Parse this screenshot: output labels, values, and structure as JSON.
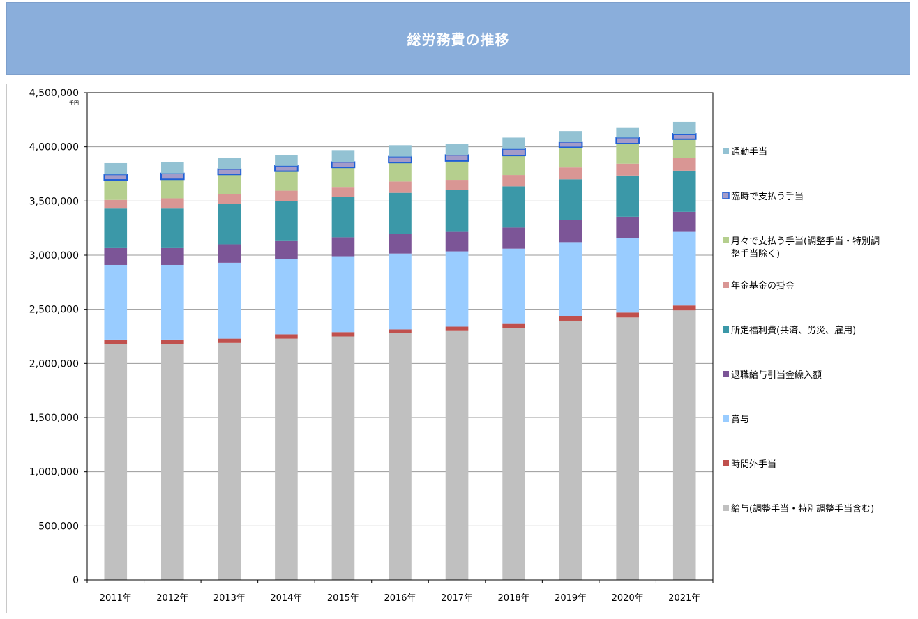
{
  "header": {
    "title": "総労務費の推移"
  },
  "chart_data": {
    "type": "bar",
    "stacked": true,
    "title": "総労務費の推移",
    "unit_label": "千円",
    "categories": [
      "2011年",
      "2012年",
      "2013年",
      "2014年",
      "2015年",
      "2016年",
      "2017年",
      "2018年",
      "2019年",
      "2020年",
      "2021年"
    ],
    "ylim": [
      0,
      4500000
    ],
    "yticks": [
      {
        "value": 0,
        "label": "0"
      },
      {
        "value": 500000,
        "label": "500,000"
      },
      {
        "value": 1000000,
        "label": "1,000,000"
      },
      {
        "value": 1500000,
        "label": "1,500,000"
      },
      {
        "value": 2000000,
        "label": "2,000,000"
      },
      {
        "value": 2500000,
        "label": "2,500,000"
      },
      {
        "value": 3000000,
        "label": "3,000,000"
      },
      {
        "value": 3500000,
        "label": "3,500,000"
      },
      {
        "value": 4000000,
        "label": "4,000,000"
      },
      {
        "value": 4500000,
        "label": "4,500,000"
      }
    ],
    "grid": true,
    "legend_position": "right",
    "series": [
      {
        "name": "給与(調整手当・特別調整手当含む)",
        "color": "#c0c0c0",
        "values": [
          2180000,
          2180000,
          2190000,
          2230000,
          2250000,
          2280000,
          2300000,
          2325000,
          2395000,
          2425000,
          2490000
        ]
      },
      {
        "name": "時間外手当",
        "color": "#c0504d",
        "values": [
          35000,
          35000,
          40000,
          40000,
          40000,
          35000,
          40000,
          40000,
          40000,
          45000,
          45000
        ]
      },
      {
        "name": "賞与",
        "color": "#99ccff",
        "values": [
          695000,
          695000,
          700000,
          695000,
          700000,
          700000,
          695000,
          695000,
          685000,
          685000,
          680000
        ]
      },
      {
        "name": "退職給与引当金繰入額",
        "color": "#7c5597",
        "values": [
          155000,
          155000,
          170000,
          165000,
          175000,
          180000,
          180000,
          195000,
          205000,
          200000,
          185000
        ]
      },
      {
        "name": "所定福利費(共済、労災、雇用)",
        "color": "#3b98a8",
        "values": [
          365000,
          365000,
          370000,
          370000,
          370000,
          380000,
          385000,
          380000,
          375000,
          380000,
          380000
        ]
      },
      {
        "name": "年金基金の掛金",
        "color": "#d99694",
        "values": [
          80000,
          95000,
          95000,
          95000,
          95000,
          105000,
          95000,
          105000,
          110000,
          110000,
          120000
        ]
      },
      {
        "name": "月々で支払う手当(調整手当・特別調整手当除く)",
        "color": "#b5cf8e",
        "values": [
          185000,
          175000,
          180000,
          180000,
          180000,
          175000,
          175000,
          180000,
          185000,
          185000,
          170000
        ]
      },
      {
        "name": "臨時で支払う手当",
        "color": "#a39bc9",
        "outline": "#1f5fd6",
        "values": [
          50000,
          55000,
          50000,
          50000,
          50000,
          55000,
          55000,
          60000,
          50000,
          55000,
          50000
        ]
      },
      {
        "name": "通勤手当",
        "color": "#93c2d3",
        "values": [
          105000,
          105000,
          105000,
          100000,
          110000,
          105000,
          105000,
          105000,
          100000,
          95000,
          110000
        ]
      }
    ],
    "legend": [
      {
        "label_lines": [
          "通勤手当"
        ]
      },
      {
        "label_lines": [
          "臨時で支払う手当"
        ]
      },
      {
        "label_lines": [
          "月々で支払う手当(調整手当・特別調",
          "整手当除く)"
        ]
      },
      {
        "label_lines": [
          "年金基金の掛金"
        ]
      },
      {
        "label_lines": [
          "所定福利費(共済、労災、雇用)"
        ]
      },
      {
        "label_lines": [
          "退職給与引当金繰入額"
        ]
      },
      {
        "label_lines": [
          "賞与"
        ]
      },
      {
        "label_lines": [
          "時間外手当"
        ]
      },
      {
        "label_lines": [
          "給与(調整手当・特別調整手当含む)"
        ]
      }
    ]
  }
}
